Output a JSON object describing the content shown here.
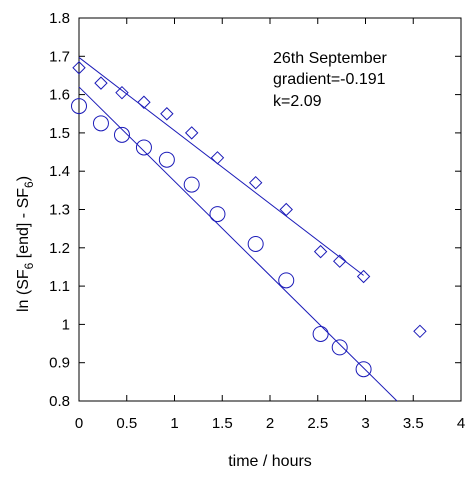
{
  "chart_data": {
    "type": "scatter",
    "xlabel": "time / hours",
    "ylabel": {
      "prefix": "ln (SF",
      "sub1": "6",
      "mid": " [end] - SF",
      "sub2": "6",
      "suffix": ")"
    },
    "xlim": [
      0,
      4
    ],
    "ylim": [
      0.8,
      1.8
    ],
    "x_ticks": [
      "0",
      "0.5",
      "1",
      "1.5",
      "2",
      "2.5",
      "3",
      "3.5",
      "4"
    ],
    "y_ticks": [
      "0.8",
      "0.9",
      "1",
      "1.1",
      "1.2",
      "1.3",
      "1.4",
      "1.5",
      "1.6",
      "1.7",
      "1.8"
    ],
    "grid": false,
    "annotations": [
      "26th September",
      "gradient=-0.191",
      "k=2.09"
    ],
    "series": [
      {
        "marker": "diamond",
        "points": [
          [
            0.0,
            1.67
          ],
          [
            0.23,
            1.63
          ],
          [
            0.45,
            1.605
          ],
          [
            0.68,
            1.58
          ],
          [
            0.92,
            1.55
          ],
          [
            1.18,
            1.5
          ],
          [
            1.45,
            1.435
          ],
          [
            1.85,
            1.37
          ],
          [
            2.17,
            1.3
          ],
          [
            2.53,
            1.19
          ],
          [
            2.73,
            1.165
          ],
          [
            2.98,
            1.125
          ],
          [
            3.57,
            0.982
          ]
        ],
        "fit": {
          "x": [
            0.0,
            2.98
          ],
          "y": [
            1.697,
            1.128
          ]
        }
      },
      {
        "marker": "circle",
        "points": [
          [
            0.0,
            1.57
          ],
          [
            0.23,
            1.525
          ],
          [
            0.45,
            1.495
          ],
          [
            0.68,
            1.462
          ],
          [
            0.92,
            1.43
          ],
          [
            1.18,
            1.365
          ],
          [
            1.45,
            1.288
          ],
          [
            1.85,
            1.21
          ],
          [
            2.17,
            1.115
          ],
          [
            2.53,
            0.975
          ],
          [
            2.73,
            0.94
          ],
          [
            2.98,
            0.883
          ]
        ],
        "fit": {
          "x": [
            0.0,
            3.33
          ],
          "y": [
            1.62,
            0.8
          ]
        }
      }
    ],
    "colors": {
      "data": "#1b1bb8",
      "axes": "#000000"
    }
  }
}
